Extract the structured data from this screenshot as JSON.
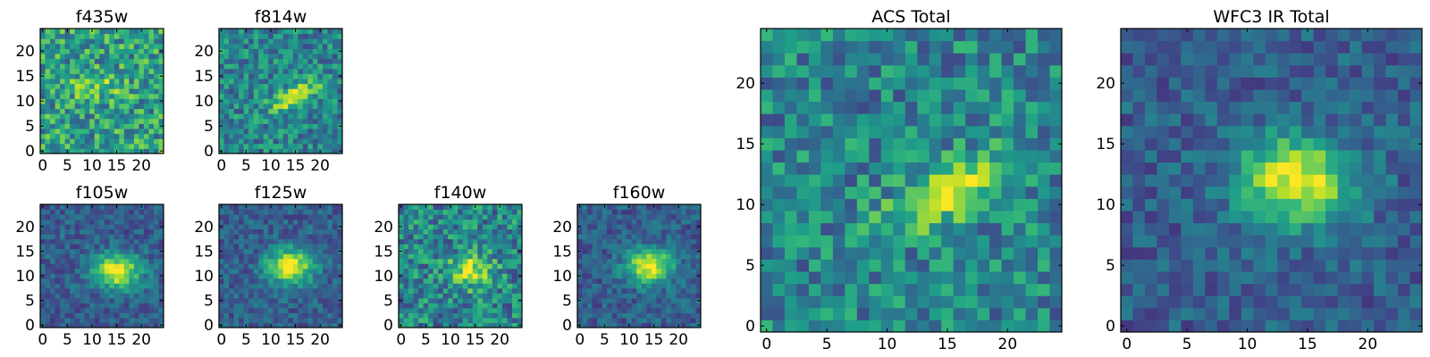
{
  "figure": {
    "background": "#ffffff",
    "colormap": "viridis"
  },
  "chart_data": [
    {
      "type": "heatmap",
      "title": "f435w",
      "xlim": [
        0,
        24
      ],
      "ylim": [
        0,
        24
      ],
      "xticks": [
        0,
        5,
        10,
        15,
        20
      ],
      "yticks": [
        0,
        5,
        10,
        15,
        20
      ],
      "grid": false,
      "source_hint": "noisy-high",
      "peak": [
        10,
        13
      ]
    },
    {
      "type": "heatmap",
      "title": "f814w",
      "xlim": [
        0,
        24
      ],
      "ylim": [
        0,
        24
      ],
      "xticks": [
        0,
        5,
        10,
        15,
        20
      ],
      "yticks": [
        0,
        5,
        10,
        15,
        20
      ],
      "grid": false,
      "source_hint": "elongated",
      "peak": [
        15,
        11
      ]
    },
    {
      "type": "heatmap",
      "title": "f105w",
      "xlim": [
        0,
        24
      ],
      "ylim": [
        0,
        24
      ],
      "xticks": [
        0,
        5,
        10,
        15,
        20
      ],
      "yticks": [
        0,
        5,
        10,
        15,
        20
      ],
      "grid": false,
      "source_hint": "smooth",
      "peak": [
        15,
        11
      ]
    },
    {
      "type": "heatmap",
      "title": "f125w",
      "xlim": [
        0,
        24
      ],
      "ylim": [
        0,
        24
      ],
      "xticks": [
        0,
        5,
        10,
        15,
        20
      ],
      "yticks": [
        0,
        5,
        10,
        15,
        20
      ],
      "grid": false,
      "source_hint": "smooth",
      "peak": [
        14,
        12
      ]
    },
    {
      "type": "heatmap",
      "title": "f140w",
      "xlim": [
        0,
        24
      ],
      "ylim": [
        0,
        24
      ],
      "xticks": [
        0,
        5,
        10,
        15,
        20
      ],
      "yticks": [
        0,
        5,
        10,
        15,
        20
      ],
      "grid": false,
      "source_hint": "noisy-mid",
      "peak": [
        14,
        11
      ]
    },
    {
      "type": "heatmap",
      "title": "f160w",
      "xlim": [
        0,
        24
      ],
      "ylim": [
        0,
        24
      ],
      "xticks": [
        0,
        5,
        10,
        15,
        20
      ],
      "yticks": [
        0,
        5,
        10,
        15,
        20
      ],
      "grid": false,
      "source_hint": "smooth",
      "peak": [
        14,
        12
      ]
    },
    {
      "type": "heatmap",
      "title": "ACS Total",
      "xlim": [
        0,
        24
      ],
      "ylim": [
        0,
        24
      ],
      "xticks": [
        0,
        5,
        10,
        15,
        20
      ],
      "yticks": [
        0,
        5,
        10,
        15,
        20
      ],
      "grid": false,
      "source_hint": "elongated",
      "peak": [
        15,
        11
      ]
    },
    {
      "type": "heatmap",
      "title": "WFC3 IR Total",
      "xlim": [
        0,
        24
      ],
      "ylim": [
        0,
        24
      ],
      "xticks": [
        0,
        5,
        10,
        15,
        20
      ],
      "yticks": [
        0,
        5,
        10,
        15,
        20
      ],
      "grid": false,
      "source_hint": "smooth",
      "peak": [
        14,
        12
      ]
    }
  ]
}
